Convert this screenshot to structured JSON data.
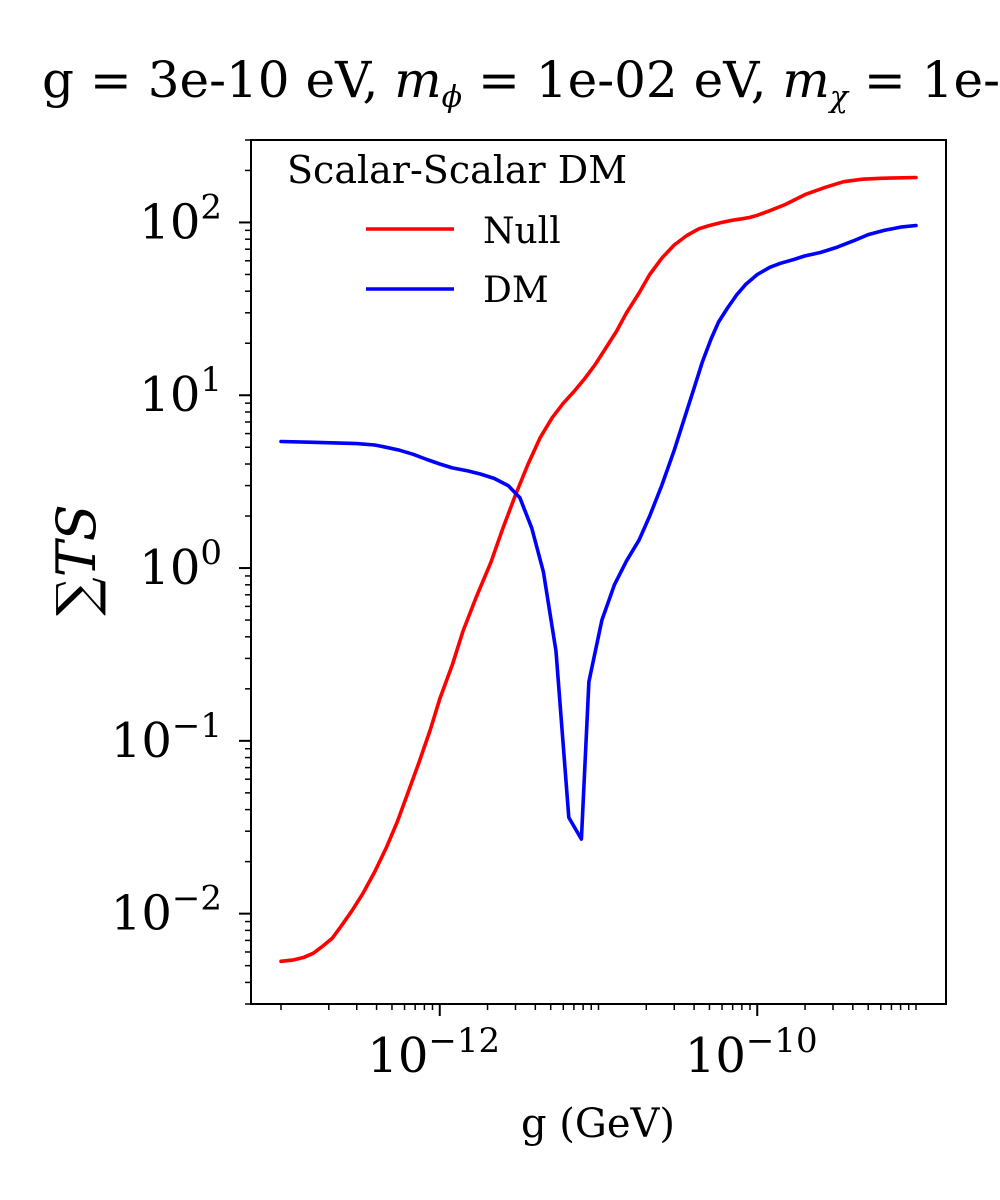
{
  "chart_data": {
    "type": "line",
    "title_parts": [
      "g = 3e-10 eV, ",
      "m",
      "ϕ",
      " = 1e-02 eV, ",
      "m",
      "χ",
      " = 1e-"
    ],
    "xlabel": "g (GeV)",
    "ylabel": "∑TS",
    "xscale": "log",
    "yscale": "log",
    "xlim": [
      1e-13,
      1e-09
    ],
    "ylim": [
      0.003,
      300
    ],
    "xticks": [
      {
        "value": 1e-12,
        "base": "10",
        "exp": "−12"
      },
      {
        "value": 1e-10,
        "base": "10",
        "exp": "−10"
      }
    ],
    "yticks": [
      {
        "value": 0.01,
        "base": "10",
        "exp": "−2"
      },
      {
        "value": 0.1,
        "base": "10",
        "exp": "−1"
      },
      {
        "value": 1,
        "base": "10",
        "exp": "0"
      },
      {
        "value": 10,
        "base": "10",
        "exp": "1"
      },
      {
        "value": 100,
        "base": "10",
        "exp": "2"
      }
    ],
    "legend": {
      "title": "Scalar-Scalar DM",
      "position": "top-left"
    },
    "grid": false,
    "series": [
      {
        "name": "Null",
        "color": "#ff0000",
        "x": [
          1e-13,
          1.2e-13,
          1.4e-13,
          1.6e-13,
          1.8e-13,
          2.1e-13,
          2.4e-13,
          2.8e-13,
          3.3e-13,
          3.9e-13,
          4.6e-13,
          5.4e-13,
          6.3e-13,
          7.4e-13,
          8.7e-13,
          1e-12,
          1.2e-12,
          1.4e-12,
          1.7e-12,
          2.1e-12,
          2.5e-12,
          3e-12,
          3.6e-12,
          4.3e-12,
          5.1e-12,
          6e-12,
          7e-12,
          8.2e-12,
          9.5e-12,
          1.1e-11,
          1.3e-11,
          1.5e-11,
          1.8e-11,
          2.1e-11,
          2.5e-11,
          3e-11,
          3.6e-11,
          4.3e-11,
          5e-11,
          6e-11,
          7e-11,
          8e-11,
          9e-11,
          1e-10,
          1.2e-10,
          1.5e-10,
          2e-10,
          2.7e-10,
          3.5e-10,
          4.6e-10,
          6e-10,
          7.5e-10,
          1e-09
        ],
        "values": [
          0.0053,
          0.0054,
          0.0056,
          0.0059,
          0.0064,
          0.0072,
          0.0085,
          0.0104,
          0.0132,
          0.0175,
          0.024,
          0.034,
          0.05,
          0.075,
          0.115,
          0.175,
          0.275,
          0.43,
          0.68,
          1.08,
          1.7,
          2.65,
          4.0,
          5.7,
          7.4,
          9.0,
          10.5,
          12.5,
          15.0,
          18.5,
          23.5,
          30.0,
          39.0,
          50.0,
          62.0,
          74.0,
          84.0,
          92.0,
          96.0,
          100.0,
          103.0,
          105.0,
          107.0,
          110.0,
          117.0,
          127.0,
          145.0,
          160.0,
          172.0,
          178.0,
          180.0,
          181.0,
          182.0
        ]
      },
      {
        "name": "DM",
        "color": "#0000ff",
        "x": [
          1e-13,
          1.5e-13,
          2.2e-13,
          3e-13,
          3.9e-13,
          4.6e-13,
          5.6e-13,
          6.8e-13,
          8.3e-13,
          1e-12,
          1.2e-12,
          1.5e-12,
          1.8e-12,
          2.2e-12,
          2.7e-12,
          3.2e-12,
          3.8e-12,
          4.5e-12,
          5.4e-12,
          6.5e-12,
          7.8e-12,
          8.7e-12,
          1.05e-11,
          1.26e-11,
          1.5e-11,
          1.8e-11,
          2.1e-11,
          2.5e-11,
          3e-11,
          3.5e-11,
          4e-11,
          4.5e-11,
          5.1e-11,
          5.7e-11,
          6.5e-11,
          7.4e-11,
          8.5e-11,
          1e-10,
          1.2e-10,
          1.4e-10,
          1.7e-10,
          2e-10,
          2.5e-10,
          3.2e-10,
          4e-10,
          5e-10,
          6.3e-10,
          8e-10,
          1e-09
        ],
        "values": [
          5.4,
          5.35,
          5.3,
          5.25,
          5.15,
          5.0,
          4.8,
          4.55,
          4.25,
          4.0,
          3.8,
          3.65,
          3.5,
          3.3,
          3.0,
          2.55,
          1.7,
          0.95,
          0.33,
          0.036,
          0.027,
          0.22,
          0.5,
          0.8,
          1.1,
          1.45,
          2.0,
          3.0,
          4.8,
          7.5,
          11.0,
          15.5,
          21.0,
          26.5,
          32.0,
          38.0,
          44.0,
          50.0,
          55.0,
          58.0,
          61.0,
          64.0,
          67.0,
          72.0,
          78.0,
          85.0,
          90.0,
          94.0,
          96.0
        ]
      }
    ]
  }
}
